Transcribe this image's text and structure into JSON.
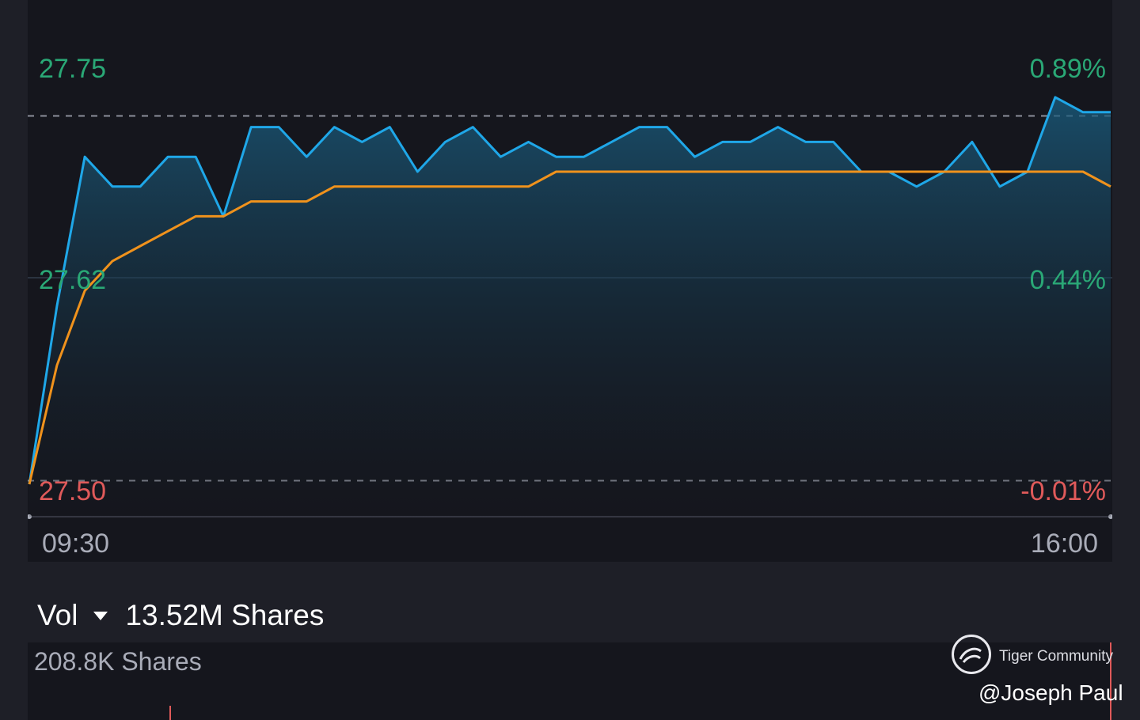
{
  "chart_data": {
    "type": "line",
    "x_start": "09:30",
    "x_end": "16:00",
    "ylim": [
      27.5,
      27.75
    ],
    "y_ticks_left": [
      "27.75",
      "27.62",
      "27.50"
    ],
    "y_ticks_right": [
      "0.89%",
      "0.44%",
      "-0.01%"
    ],
    "series": [
      {
        "color": "#1fa7e8",
        "fill": "area",
        "x": [
          "09:30",
          "09:40",
          "09:50",
          "10:00",
          "10:10",
          "10:20",
          "10:30",
          "10:40",
          "10:50",
          "11:00",
          "11:10",
          "11:20",
          "11:30",
          "11:40",
          "11:50",
          "12:00",
          "12:10",
          "12:20",
          "12:30",
          "12:40",
          "12:50",
          "13:00",
          "13:10",
          "13:20",
          "13:30",
          "13:40",
          "13:50",
          "14:00",
          "14:10",
          "14:20",
          "14:30",
          "14:40",
          "14:50",
          "15:00",
          "15:10",
          "15:20",
          "15:30",
          "15:40",
          "15:50",
          "16:00"
        ],
        "values": [
          27.5,
          27.62,
          27.72,
          27.7,
          27.7,
          27.72,
          27.72,
          27.68,
          27.74,
          27.74,
          27.72,
          27.74,
          27.73,
          27.74,
          27.71,
          27.73,
          27.74,
          27.72,
          27.73,
          27.72,
          27.72,
          27.73,
          27.74,
          27.74,
          27.72,
          27.73,
          27.73,
          27.74,
          27.73,
          27.73,
          27.71,
          27.71,
          27.7,
          27.71,
          27.73,
          27.7,
          27.71,
          27.76,
          27.75,
          27.75
        ]
      },
      {
        "color": "#f0921c",
        "x": [
          "09:30",
          "09:40",
          "09:50",
          "10:00",
          "10:10",
          "10:20",
          "10:30",
          "10:40",
          "10:50",
          "11:00",
          "11:10",
          "11:20",
          "11:30",
          "11:40",
          "11:50",
          "12:00",
          "12:10",
          "12:20",
          "12:30",
          "12:40",
          "12:50",
          "13:00",
          "13:10",
          "13:20",
          "13:30",
          "13:40",
          "13:50",
          "14:00",
          "14:10",
          "14:20",
          "14:30",
          "14:40",
          "14:50",
          "15:00",
          "15:10",
          "15:20",
          "15:30",
          "15:40",
          "15:50",
          "16:00"
        ],
        "values": [
          27.5,
          27.58,
          27.63,
          27.65,
          27.66,
          27.67,
          27.68,
          27.68,
          27.69,
          27.69,
          27.69,
          27.7,
          27.7,
          27.7,
          27.7,
          27.7,
          27.7,
          27.7,
          27.7,
          27.71,
          27.71,
          27.71,
          27.71,
          27.71,
          27.71,
          27.71,
          27.71,
          27.71,
          27.71,
          27.71,
          27.71,
          27.71,
          27.71,
          27.71,
          27.71,
          27.71,
          27.71,
          27.71,
          27.71,
          27.7
        ]
      }
    ],
    "reference_lines": [
      27.7475,
      27.5024
    ],
    "grid": true,
    "legend": "none"
  },
  "volume": {
    "label": "Vol",
    "total": "13.52M Shares",
    "max_label": "208.8K Shares"
  },
  "watermark": {
    "name": "Tiger Community",
    "user": "@Joseph Paul"
  },
  "colors": {
    "up": "#2aa876",
    "down": "#e05a5a",
    "price_line": "#1fa7e8",
    "avg_line": "#f0921c",
    "panel_bg": "#15161d",
    "page_bg": "#1e1f27"
  }
}
